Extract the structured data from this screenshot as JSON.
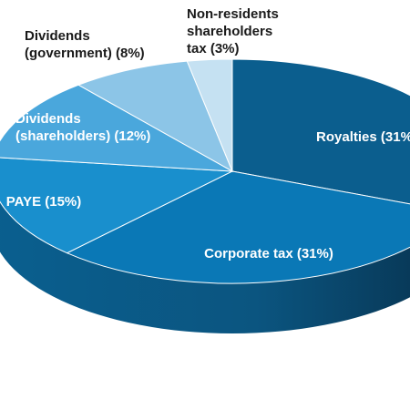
{
  "chart_data": {
    "type": "pie",
    "title": "",
    "slices": [
      {
        "label_lines": [
          "Royalties (31%"
        ],
        "value": 31,
        "color": "#0b5e8e"
      },
      {
        "label_lines": [
          "Corporate tax (31%)"
        ],
        "value": 31,
        "color": "#0a78b6"
      },
      {
        "label_lines": [
          "PAYE (15%)"
        ],
        "value": 15,
        "color": "#198fcd"
      },
      {
        "label_lines": [
          "Dividends",
          "(shareholders) (12%)"
        ],
        "value": 12,
        "color": "#4aa7dc"
      },
      {
        "label_lines": [
          "Dividends",
          "(government) (8%)"
        ],
        "value": 8,
        "color": "#8cc5e7"
      },
      {
        "label_lines": [
          "Non-residents",
          "shareholders",
          "tax (3%)"
        ],
        "value": 3,
        "color": "#c5e1f2"
      }
    ],
    "side_colors": {
      "dark": "#083d5e",
      "mid": "#0a5c8a"
    },
    "start_angle_deg": -90,
    "direction": "clockwise",
    "style": "3d-exploded-none"
  }
}
